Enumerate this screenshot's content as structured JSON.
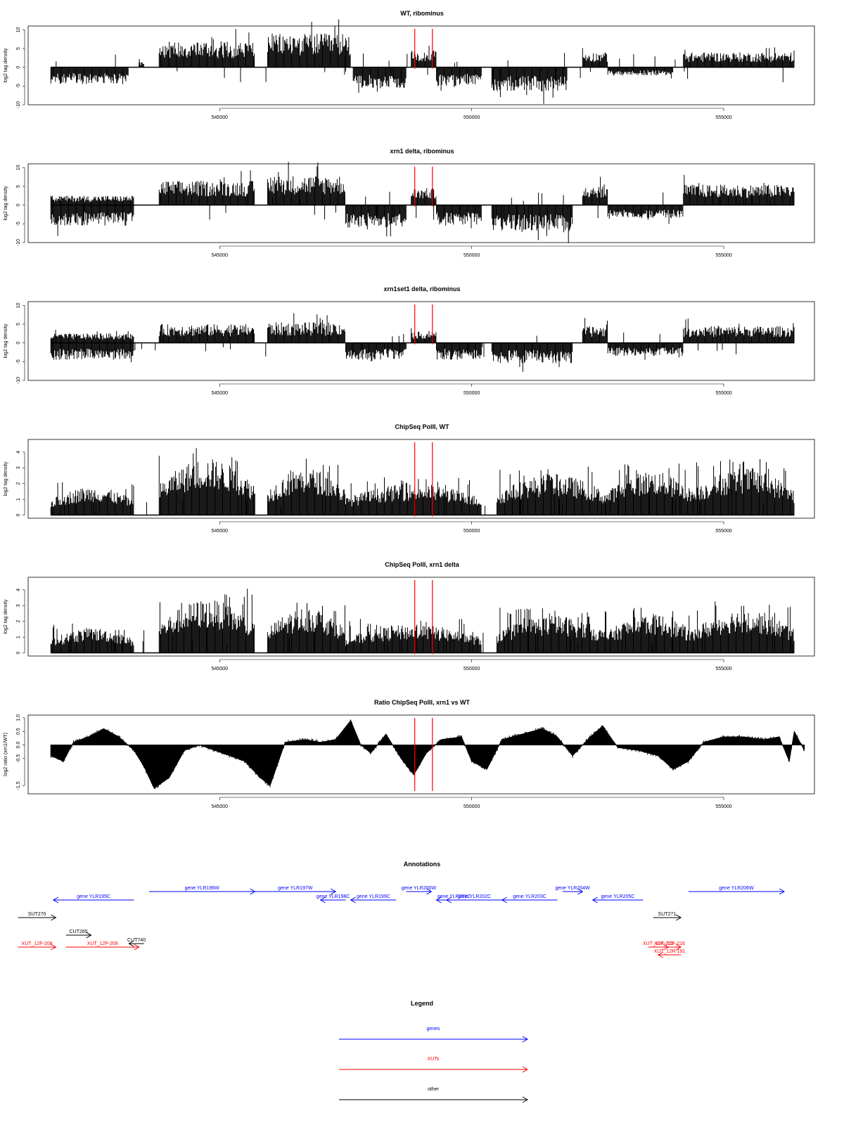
{
  "chart_data": [
    {
      "type": "area",
      "title": "WT, ribominus",
      "ylabel": "log2 tag density",
      "ylim": [
        -10,
        11
      ],
      "yticks": [
        "-10",
        "-5",
        "0",
        "5",
        "10"
      ],
      "xlim": [
        541200,
        556800
      ],
      "xticks": [
        "545000",
        "550000",
        "555000"
      ],
      "markers": [
        548870,
        549220
      ],
      "signal": "signed",
      "segments": [
        {
          "x": [
            541650,
            543200
          ],
          "amp": 4.5,
          "sign": -1
        },
        {
          "x": [
            543400,
            543500
          ],
          "amp": 1.5,
          "sign": 1
        },
        {
          "x": [
            543800,
            545700
          ],
          "amp": 7.0,
          "sign": 1
        },
        {
          "x": [
            545950,
            547600
          ],
          "amp": 9.0,
          "sign": 1
        },
        {
          "x": [
            547650,
            548700
          ],
          "amp": 5.5,
          "sign": -1
        },
        {
          "x": [
            548800,
            549300
          ],
          "amp": 4.5,
          "sign": 1
        },
        {
          "x": [
            549300,
            550200
          ],
          "amp": 5.0,
          "sign": -1
        },
        {
          "x": [
            550400,
            551900
          ],
          "amp": 6.5,
          "sign": -1
        },
        {
          "x": [
            552200,
            552700
          ],
          "amp": 4.0,
          "sign": 1
        },
        {
          "x": [
            552700,
            554000
          ],
          "amp": 2.2,
          "sign": -1
        },
        {
          "x": [
            554200,
            556400
          ],
          "amp": 4.0,
          "sign": 1
        }
      ]
    },
    {
      "type": "area",
      "title": "xrn1 delta, ribominus",
      "ylabel": "log2 tag density",
      "ylim": [
        -10,
        11
      ],
      "yticks": [
        "-10",
        "-5",
        "0",
        "5",
        "10"
      ],
      "xlim": [
        541200,
        556800
      ],
      "xticks": [
        "545000",
        "550000",
        "555000"
      ],
      "markers": [
        548870,
        549220
      ],
      "signal": "signed",
      "segments": [
        {
          "x": [
            541650,
            543300
          ],
          "amp": 5.5,
          "sign": -1
        },
        {
          "x": [
            541650,
            543300
          ],
          "amp": 2.5,
          "sign": 1
        },
        {
          "x": [
            543800,
            545700
          ],
          "amp": 6.5,
          "sign": 1
        },
        {
          "x": [
            545950,
            547500
          ],
          "amp": 8.0,
          "sign": 1
        },
        {
          "x": [
            547500,
            548700
          ],
          "amp": 6.0,
          "sign": -1
        },
        {
          "x": [
            548800,
            549300
          ],
          "amp": 4.5,
          "sign": 1
        },
        {
          "x": [
            549300,
            550200
          ],
          "amp": 5.5,
          "sign": -1
        },
        {
          "x": [
            550400,
            552000
          ],
          "amp": 7.0,
          "sign": -1
        },
        {
          "x": [
            552200,
            552700
          ],
          "amp": 5.5,
          "sign": 1
        },
        {
          "x": [
            552700,
            554200
          ],
          "amp": 3.5,
          "sign": -1
        },
        {
          "x": [
            554200,
            556400
          ],
          "amp": 5.5,
          "sign": 1
        }
      ]
    },
    {
      "type": "area",
      "title": "xrn1set1 delta, ribominus",
      "ylabel": "log2 tag density",
      "ylim": [
        -10,
        11
      ],
      "yticks": [
        "-10",
        "-5",
        "0",
        "5",
        "10"
      ],
      "xlim": [
        541200,
        556800
      ],
      "xticks": [
        "545000",
        "550000",
        "555000"
      ],
      "markers": [
        548870,
        549220
      ],
      "signal": "signed",
      "segments": [
        {
          "x": [
            541650,
            543300
          ],
          "amp": 4.5,
          "sign": -1
        },
        {
          "x": [
            541650,
            543300
          ],
          "amp": 2.5,
          "sign": 1
        },
        {
          "x": [
            543800,
            545700
          ],
          "amp": 5.0,
          "sign": 1
        },
        {
          "x": [
            545950,
            547500
          ],
          "amp": 5.5,
          "sign": 1
        },
        {
          "x": [
            547500,
            548700
          ],
          "amp": 4.5,
          "sign": -1
        },
        {
          "x": [
            548800,
            549300
          ],
          "amp": 3.0,
          "sign": 1
        },
        {
          "x": [
            549300,
            550200
          ],
          "amp": 4.5,
          "sign": -1
        },
        {
          "x": [
            550400,
            552000
          ],
          "amp": 5.5,
          "sign": -1
        },
        {
          "x": [
            552200,
            552700
          ],
          "amp": 4.5,
          "sign": 1
        },
        {
          "x": [
            552700,
            554200
          ],
          "amp": 3.5,
          "sign": -1
        },
        {
          "x": [
            554200,
            556400
          ],
          "amp": 4.5,
          "sign": 1
        }
      ]
    },
    {
      "type": "area",
      "title": "ChipSeq PolII, WT",
      "ylabel": "log2 tag density",
      "ylim": [
        -0.2,
        4.8
      ],
      "yticks": [
        "0",
        "1",
        "2",
        "3",
        "4"
      ],
      "xlim": [
        541200,
        556800
      ],
      "xticks": [
        "545000",
        "550000",
        "555000"
      ],
      "markers": [
        548870,
        549220
      ],
      "signal": "positive",
      "segments": [
        {
          "x": [
            541650,
            543300
          ],
          "amp": 1.8,
          "sign": 1
        },
        {
          "x": [
            543800,
            545700
          ],
          "amp": 3.6,
          "sign": 1
        },
        {
          "x": [
            545950,
            547500
          ],
          "amp": 3.0,
          "sign": 1
        },
        {
          "x": [
            547500,
            550200
          ],
          "amp": 2.0,
          "sign": 1
        },
        {
          "x": [
            550500,
            552700
          ],
          "amp": 2.6,
          "sign": 1
        },
        {
          "x": [
            552700,
            554400
          ],
          "amp": 2.8,
          "sign": 1
        },
        {
          "x": [
            554400,
            556400
          ],
          "amp": 3.0,
          "sign": 1
        }
      ]
    },
    {
      "type": "area",
      "title": "ChipSeq PolII, xrn1 delta",
      "ylabel": "log2 tag density",
      "ylim": [
        -0.2,
        4.8
      ],
      "yticks": [
        "0",
        "1",
        "2",
        "3",
        "4"
      ],
      "xlim": [
        541200,
        556800
      ],
      "xticks": [
        "545000",
        "550000",
        "555000"
      ],
      "markers": [
        548870,
        549220
      ],
      "signal": "positive",
      "segments": [
        {
          "x": [
            541650,
            543300
          ],
          "amp": 1.6,
          "sign": 1
        },
        {
          "x": [
            543800,
            545700
          ],
          "amp": 3.4,
          "sign": 1
        },
        {
          "x": [
            545950,
            547500
          ],
          "amp": 2.9,
          "sign": 1
        },
        {
          "x": [
            547500,
            550200
          ],
          "amp": 1.8,
          "sign": 1
        },
        {
          "x": [
            550500,
            552700
          ],
          "amp": 2.4,
          "sign": 1
        },
        {
          "x": [
            552700,
            554400
          ],
          "amp": 2.5,
          "sign": 1
        },
        {
          "x": [
            554400,
            556400
          ],
          "amp": 2.8,
          "sign": 1
        }
      ]
    },
    {
      "type": "area",
      "title": "Ratio ChipSeq PolII, xrn1 vs WT",
      "ylabel": "log2 ratio (xrn1/WT)",
      "ylim": [
        -1.8,
        1.1
      ],
      "yticks": [
        "-1.5",
        "-0.5",
        "0.0",
        "0.5",
        "1.0"
      ],
      "ytick_values": [
        -1.5,
        -0.5,
        0.0,
        0.5,
        1.0
      ],
      "xlim": [
        541200,
        556800
      ],
      "xticks": [
        "545000",
        "550000",
        "555000"
      ],
      "markers": [
        548870,
        549220
      ],
      "signal": "ratio",
      "ratio_curve": [
        [
          541650,
          -0.4
        ],
        [
          541900,
          -0.6
        ],
        [
          542100,
          0.1
        ],
        [
          542400,
          0.3
        ],
        [
          542700,
          0.6
        ],
        [
          543000,
          0.3
        ],
        [
          543300,
          -0.2
        ],
        [
          543500,
          -0.8
        ],
        [
          543700,
          -1.6
        ],
        [
          544000,
          -1.2
        ],
        [
          544300,
          -0.2
        ],
        [
          544600,
          0.0
        ],
        [
          544900,
          -0.2
        ],
        [
          545200,
          -0.4
        ],
        [
          545500,
          -0.6
        ],
        [
          545800,
          -1.2
        ],
        [
          546000,
          -1.5
        ],
        [
          546300,
          0.1
        ],
        [
          546700,
          0.2
        ],
        [
          547000,
          0.1
        ],
        [
          547300,
          0.2
        ],
        [
          547600,
          0.9
        ],
        [
          547800,
          0.0
        ],
        [
          548000,
          -0.3
        ],
        [
          548300,
          0.4
        ],
        [
          548600,
          -0.5
        ],
        [
          548850,
          -1.1
        ],
        [
          549100,
          -0.3
        ],
        [
          549400,
          0.2
        ],
        [
          549800,
          0.3
        ],
        [
          550000,
          -0.6
        ],
        [
          550300,
          -0.9
        ],
        [
          550600,
          0.2
        ],
        [
          551000,
          0.4
        ],
        [
          551400,
          0.6
        ],
        [
          551700,
          0.3
        ],
        [
          552000,
          -0.4
        ],
        [
          552300,
          0.2
        ],
        [
          552600,
          0.7
        ],
        [
          552900,
          -0.1
        ],
        [
          553300,
          -0.2
        ],
        [
          553700,
          -0.4
        ],
        [
          554000,
          -0.9
        ],
        [
          554300,
          -0.6
        ],
        [
          554600,
          0.1
        ],
        [
          555000,
          0.3
        ],
        [
          555400,
          0.3
        ],
        [
          555800,
          0.2
        ],
        [
          556100,
          0.3
        ],
        [
          556300,
          -0.6
        ],
        [
          556400,
          0.5
        ],
        [
          556600,
          -0.2
        ]
      ]
    }
  ],
  "annotations": {
    "title": "Annotations",
    "colors": {
      "gene": "#0000FF",
      "xut": "#FF0000",
      "other": "#000000"
    },
    "items": [
      {
        "label": "gene YLR195C",
        "kind": "gene",
        "x1": 541700,
        "x2": 543300,
        "row": 1,
        "dir": "left"
      },
      {
        "label": "gene YLR196W",
        "kind": "gene",
        "x1": 543600,
        "x2": 545700,
        "row": 0,
        "dir": "right"
      },
      {
        "label": "gene YLR197W",
        "kind": "gene",
        "x1": 545700,
        "x2": 547300,
        "row": 0,
        "dir": "right"
      },
      {
        "label": "gene YLR198C",
        "kind": "gene",
        "x1": 547000,
        "x2": 547500,
        "row": 1,
        "dir": "left"
      },
      {
        "label": "gene YLR199C",
        "kind": "gene",
        "x1": 547600,
        "x2": 548500,
        "row": 1,
        "dir": "left"
      },
      {
        "label": "gene YLR200W",
        "kind": "gene",
        "x1": 548700,
        "x2": 549200,
        "row": 0,
        "dir": "right"
      },
      {
        "label": "gene YLR201C",
        "kind": "gene",
        "x1": 549300,
        "x2": 550000,
        "row": 1,
        "dir": "left"
      },
      {
        "label": "gene YLR202C",
        "kind": "gene",
        "x1": 549500,
        "x2": 550600,
        "row": 1,
        "dir": "left"
      },
      {
        "label": "gene YLR203C",
        "kind": "gene",
        "x1": 550600,
        "x2": 551700,
        "row": 1,
        "dir": "left"
      },
      {
        "label": "gene YLR204W",
        "kind": "gene",
        "x1": 551800,
        "x2": 552200,
        "row": 0,
        "dir": "right"
      },
      {
        "label": "gene YLR205C",
        "kind": "gene",
        "x1": 552400,
        "x2": 553400,
        "row": 1,
        "dir": "left"
      },
      {
        "label": "gene YLR206W",
        "kind": "gene",
        "x1": 554300,
        "x2": 556200,
        "row": 0,
        "dir": "right"
      },
      {
        "label": "SUT270",
        "kind": "other",
        "x1": 541000,
        "x2": 541750,
        "row": 2,
        "dir": "right"
      },
      {
        "label": "CUT265",
        "kind": "other",
        "x1": 541950,
        "x2": 542450,
        "row": 3,
        "dir": "right"
      },
      {
        "label": "CUT740",
        "kind": "other",
        "x1": 543200,
        "x2": 543500,
        "row": 4,
        "dir": "left"
      },
      {
        "label": "SUT271",
        "kind": "other",
        "x1": 553600,
        "x2": 554150,
        "row": 2,
        "dir": "right"
      },
      {
        "label": "XUT_12F-208",
        "kind": "xut",
        "x1": 541000,
        "x2": 541750,
        "row": 5,
        "dir": "right"
      },
      {
        "label": "XUT_12F-209",
        "kind": "xut",
        "x1": 541950,
        "x2": 543400,
        "row": 5,
        "dir": "right"
      },
      {
        "label": "XUT_12F-215",
        "kind": "xut",
        "x1": 553500,
        "x2": 553900,
        "row": 5,
        "dir": "right"
      },
      {
        "label": "XUT_12F-216",
        "kind": "xut",
        "x1": 553700,
        "x2": 554150,
        "row": 5,
        "dir": "right"
      },
      {
        "label": "XUT_12R-191",
        "kind": "xut",
        "x1": 553700,
        "x2": 554150,
        "row": 6,
        "dir": "left"
      }
    ]
  },
  "legend": {
    "title": "Legend",
    "items": [
      {
        "label": "genes",
        "kind": "gene"
      },
      {
        "label": "XUTs",
        "kind": "xut"
      },
      {
        "label": "other",
        "kind": "other"
      }
    ]
  }
}
